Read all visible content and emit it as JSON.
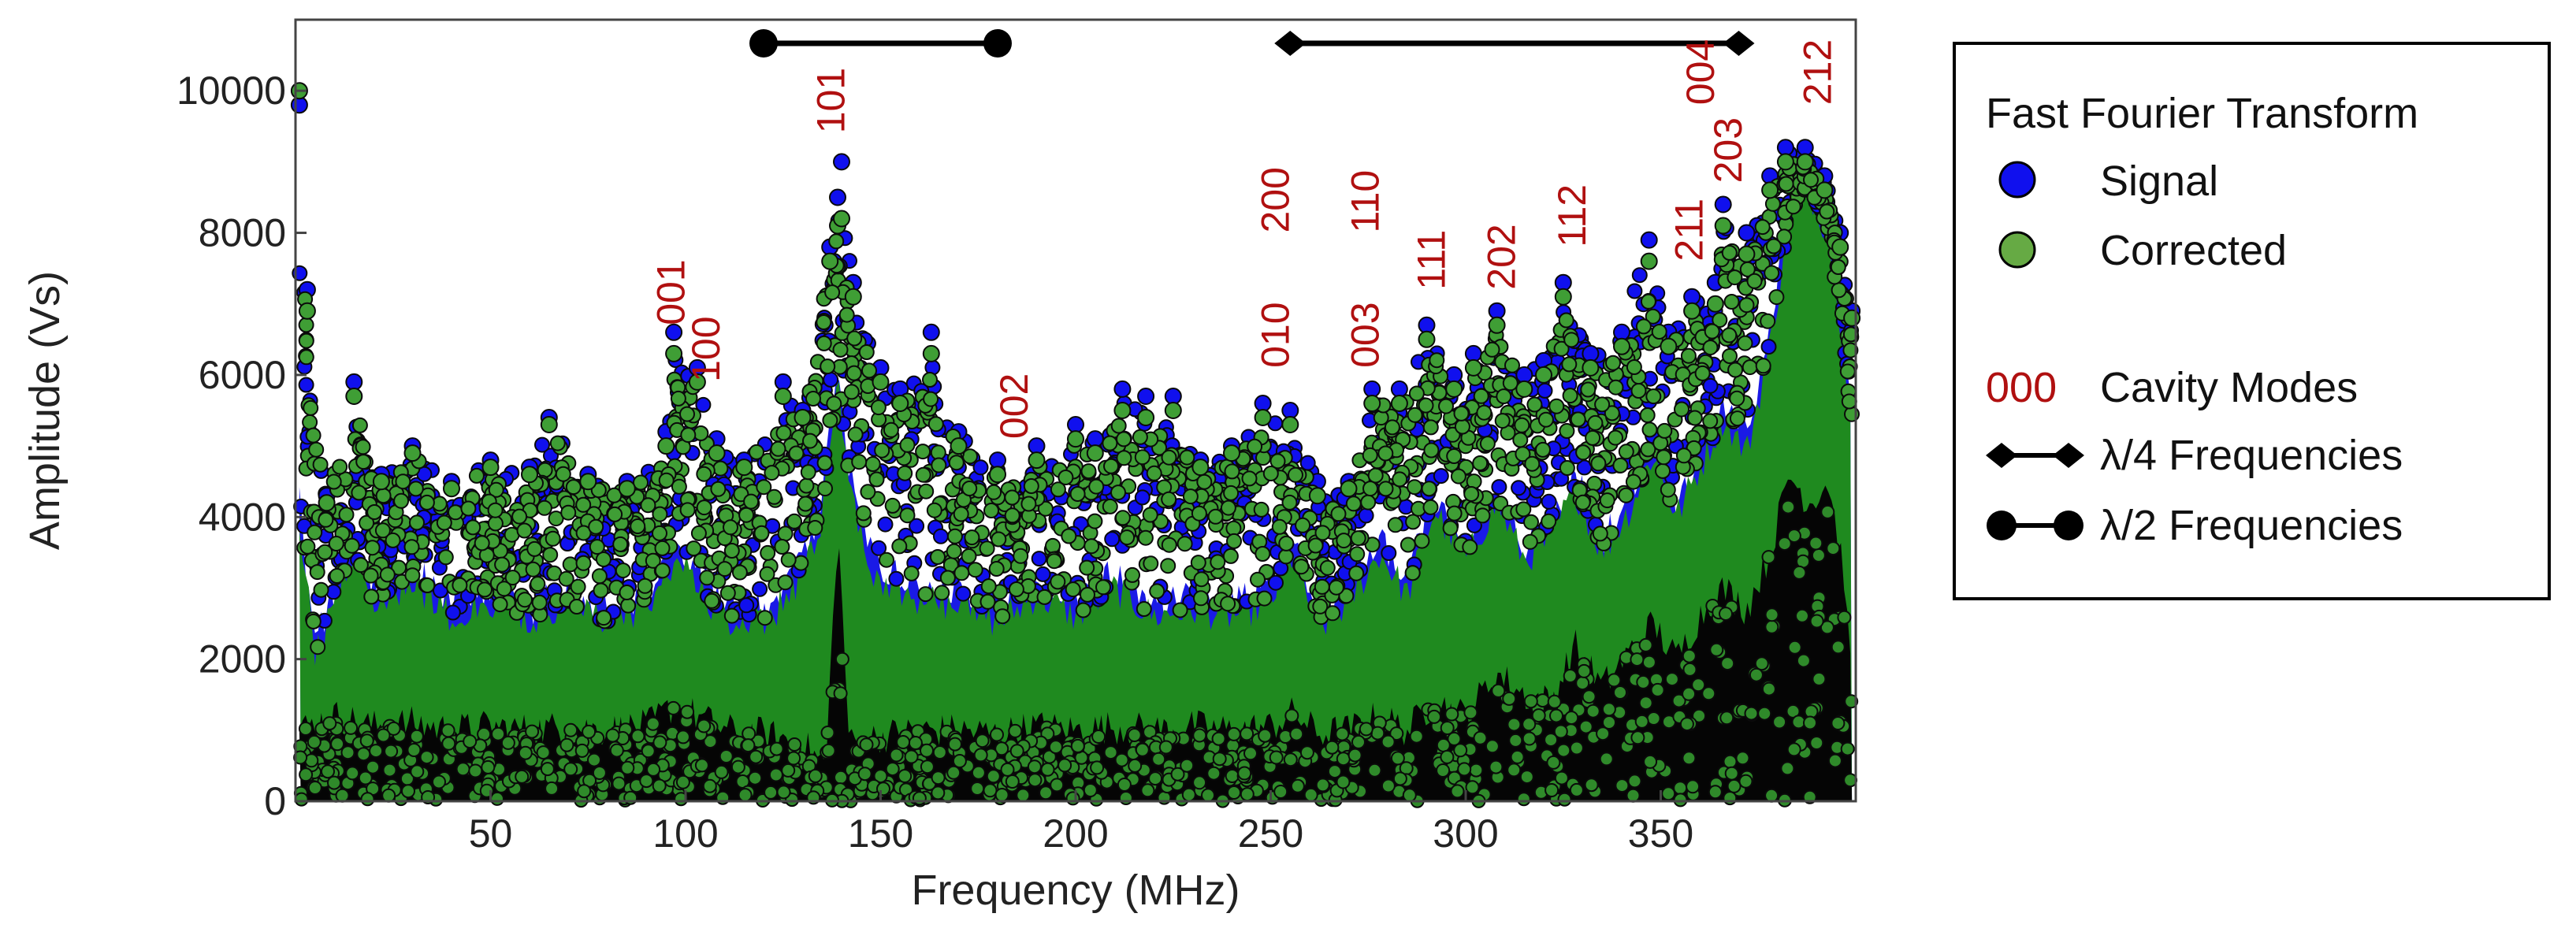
{
  "chart_data": {
    "type": "scatter",
    "title": "",
    "xlabel": "Frequency (MHz)",
    "ylabel": "Amplitude (Vs)",
    "xlim": [
      0,
      400
    ],
    "ylim": [
      0,
      11000
    ],
    "xticks": [
      50,
      100,
      150,
      200,
      250,
      300,
      350
    ],
    "yticks": [
      0,
      2000,
      4000,
      6000,
      8000,
      10000
    ],
    "grid": false,
    "legend": {
      "title": "Fast Fourier Transform",
      "placement": "right",
      "items": [
        {
          "label": "Signal",
          "color": "#1010ee",
          "marker": "circle"
        },
        {
          "label": "Corrected",
          "color": "#3a9a2a",
          "marker": "circle"
        },
        {
          "code": "000",
          "label": "Cavity Modes",
          "color": "#b01010",
          "marker": "text"
        },
        {
          "label": "λ/4 Frequencies",
          "color": "#000000",
          "marker": "diamond-line"
        },
        {
          "label": "λ/2 Frequencies",
          "color": "#000000",
          "marker": "circle-line"
        }
      ]
    },
    "series": [
      {
        "name": "Signal",
        "color": "#1010ee",
        "points": [
          [
            1,
            9800
          ],
          [
            3,
            7200
          ],
          [
            8,
            4300
          ],
          [
            15,
            5900
          ],
          [
            22,
            4600
          ],
          [
            30,
            5000
          ],
          [
            40,
            4500
          ],
          [
            50,
            4800
          ],
          [
            60,
            4700
          ],
          [
            65,
            5400
          ],
          [
            75,
            4600
          ],
          [
            85,
            4500
          ],
          [
            95,
            5200
          ],
          [
            97,
            6600
          ],
          [
            103,
            6100
          ],
          [
            108,
            5100
          ],
          [
            115,
            4800
          ],
          [
            125,
            5900
          ],
          [
            130,
            5500
          ],
          [
            137,
            7800
          ],
          [
            139,
            8500
          ],
          [
            140,
            9000
          ],
          [
            143,
            7300
          ],
          [
            150,
            6100
          ],
          [
            155,
            5800
          ],
          [
            163,
            6600
          ],
          [
            170,
            5200
          ],
          [
            180,
            4800
          ],
          [
            190,
            5000
          ],
          [
            200,
            5300
          ],
          [
            205,
            5100
          ],
          [
            212,
            5800
          ],
          [
            218,
            5700
          ],
          [
            225,
            5700
          ],
          [
            232,
            4800
          ],
          [
            240,
            5000
          ],
          [
            248,
            5600
          ],
          [
            255,
            5500
          ],
          [
            262,
            4500
          ],
          [
            270,
            4500
          ],
          [
            276,
            5800
          ],
          [
            283,
            5800
          ],
          [
            290,
            6700
          ],
          [
            297,
            6000
          ],
          [
            302,
            6300
          ],
          [
            308,
            6900
          ],
          [
            315,
            6000
          ],
          [
            320,
            6200
          ],
          [
            325,
            7300
          ],
          [
            332,
            6300
          ],
          [
            340,
            6600
          ],
          [
            347,
            7900
          ],
          [
            352,
            6600
          ],
          [
            358,
            7100
          ],
          [
            364,
            7300
          ],
          [
            366,
            8400
          ],
          [
            372,
            8000
          ],
          [
            378,
            8800
          ],
          [
            382,
            9200
          ],
          [
            387,
            9200
          ],
          [
            392,
            8800
          ],
          [
            396,
            8000
          ],
          [
            399,
            6900
          ]
        ]
      },
      {
        "name": "Corrected",
        "color": "#3a9a2a",
        "points": [
          [
            1,
            10000
          ],
          [
            3,
            6900
          ],
          [
            8,
            4200
          ],
          [
            15,
            5700
          ],
          [
            22,
            4500
          ],
          [
            30,
            4900
          ],
          [
            40,
            4400
          ],
          [
            50,
            4700
          ],
          [
            60,
            4600
          ],
          [
            65,
            5300
          ],
          [
            75,
            4500
          ],
          [
            85,
            4400
          ],
          [
            95,
            5000
          ],
          [
            97,
            6300
          ],
          [
            103,
            5900
          ],
          [
            108,
            4900
          ],
          [
            115,
            4700
          ],
          [
            125,
            5700
          ],
          [
            130,
            5400
          ],
          [
            137,
            7600
          ],
          [
            139,
            8100
          ],
          [
            140,
            8200
          ],
          [
            143,
            7100
          ],
          [
            150,
            5900
          ],
          [
            155,
            5600
          ],
          [
            163,
            6300
          ],
          [
            170,
            5000
          ],
          [
            180,
            4600
          ],
          [
            190,
            4800
          ],
          [
            200,
            5100
          ],
          [
            205,
            4900
          ],
          [
            212,
            5500
          ],
          [
            218,
            5400
          ],
          [
            225,
            5500
          ],
          [
            232,
            4700
          ],
          [
            240,
            4900
          ],
          [
            248,
            5400
          ],
          [
            255,
            5300
          ],
          [
            262,
            4300
          ],
          [
            270,
            4400
          ],
          [
            276,
            5600
          ],
          [
            283,
            5600
          ],
          [
            290,
            6500
          ],
          [
            297,
            5800
          ],
          [
            302,
            6100
          ],
          [
            308,
            6700
          ],
          [
            315,
            5800
          ],
          [
            320,
            6000
          ],
          [
            325,
            7100
          ],
          [
            332,
            6100
          ],
          [
            340,
            6400
          ],
          [
            347,
            7600
          ],
          [
            352,
            6400
          ],
          [
            358,
            6900
          ],
          [
            364,
            7000
          ],
          [
            366,
            8100
          ],
          [
            372,
            7700
          ],
          [
            378,
            8600
          ],
          [
            382,
            9000
          ],
          [
            387,
            9000
          ],
          [
            392,
            8600
          ],
          [
            396,
            7800
          ],
          [
            399,
            6800
          ]
        ]
      }
    ],
    "signal_band_top": [
      [
        1,
        4200
      ],
      [
        5,
        2200
      ],
      [
        10,
        3000
      ],
      [
        15,
        3700
      ],
      [
        20,
        3000
      ],
      [
        30,
        3300
      ],
      [
        40,
        2800
      ],
      [
        50,
        3000
      ],
      [
        60,
        2700
      ],
      [
        70,
        3000
      ],
      [
        80,
        2700
      ],
      [
        90,
        2900
      ],
      [
        97,
        3600
      ],
      [
        103,
        3300
      ],
      [
        110,
        2700
      ],
      [
        120,
        2700
      ],
      [
        128,
        3200
      ],
      [
        135,
        4200
      ],
      [
        139,
        6300
      ],
      [
        142,
        4700
      ],
      [
        148,
        3400
      ],
      [
        160,
        3000
      ],
      [
        170,
        3000
      ],
      [
        180,
        2700
      ],
      [
        190,
        3100
      ],
      [
        200,
        2800
      ],
      [
        210,
        3200
      ],
      [
        220,
        2800
      ],
      [
        230,
        2900
      ],
      [
        240,
        2800
      ],
      [
        250,
        3000
      ],
      [
        256,
        3700
      ],
      [
        262,
        2600
      ],
      [
        270,
        3000
      ],
      [
        278,
        3700
      ],
      [
        285,
        3100
      ],
      [
        292,
        4300
      ],
      [
        300,
        3600
      ],
      [
        308,
        4400
      ],
      [
        315,
        3600
      ],
      [
        322,
        3900
      ],
      [
        328,
        4600
      ],
      [
        335,
        3700
      ],
      [
        342,
        4300
      ],
      [
        348,
        5100
      ],
      [
        354,
        4200
      ],
      [
        360,
        4900
      ],
      [
        366,
        5600
      ],
      [
        372,
        5100
      ],
      [
        378,
        6600
      ],
      [
        383,
        8500
      ],
      [
        388,
        9000
      ],
      [
        393,
        8300
      ],
      [
        397,
        6600
      ],
      [
        399,
        5400
      ]
    ],
    "green_band_top": [
      [
        1,
        4000
      ],
      [
        5,
        2000
      ],
      [
        10,
        2800
      ],
      [
        15,
        3500
      ],
      [
        20,
        2800
      ],
      [
        30,
        3100
      ],
      [
        40,
        2600
      ],
      [
        50,
        2800
      ],
      [
        60,
        2500
      ],
      [
        70,
        2800
      ],
      [
        80,
        2500
      ],
      [
        90,
        2700
      ],
      [
        97,
        3400
      ],
      [
        103,
        3100
      ],
      [
        110,
        2500
      ],
      [
        120,
        2500
      ],
      [
        128,
        3000
      ],
      [
        135,
        4000
      ],
      [
        139,
        5900
      ],
      [
        142,
        4500
      ],
      [
        148,
        3200
      ],
      [
        160,
        2800
      ],
      [
        170,
        2800
      ],
      [
        180,
        2500
      ],
      [
        190,
        2900
      ],
      [
        200,
        2600
      ],
      [
        210,
        3000
      ],
      [
        220,
        2600
      ],
      [
        230,
        2700
      ],
      [
        240,
        2600
      ],
      [
        250,
        2800
      ],
      [
        256,
        3500
      ],
      [
        262,
        2400
      ],
      [
        270,
        2800
      ],
      [
        278,
        3500
      ],
      [
        285,
        2900
      ],
      [
        292,
        4100
      ],
      [
        300,
        3400
      ],
      [
        308,
        4200
      ],
      [
        315,
        3400
      ],
      [
        322,
        3700
      ],
      [
        328,
        4400
      ],
      [
        335,
        3500
      ],
      [
        342,
        4100
      ],
      [
        348,
        4900
      ],
      [
        354,
        4000
      ],
      [
        360,
        4700
      ],
      [
        366,
        5400
      ],
      [
        372,
        4900
      ],
      [
        378,
        6400
      ],
      [
        383,
        8200
      ],
      [
        388,
        8600
      ],
      [
        393,
        8000
      ],
      [
        397,
        6400
      ],
      [
        399,
        5200
      ]
    ],
    "green_band_bottom": [
      [
        1,
        900
      ],
      [
        10,
        1100
      ],
      [
        20,
        1000
      ],
      [
        30,
        1050
      ],
      [
        40,
        950
      ],
      [
        50,
        1000
      ],
      [
        60,
        950
      ],
      [
        70,
        1000
      ],
      [
        80,
        950
      ],
      [
        90,
        1000
      ],
      [
        97,
        1250
      ],
      [
        103,
        1100
      ],
      [
        110,
        950
      ],
      [
        120,
        900
      ],
      [
        130,
        700
      ],
      [
        136,
        300
      ],
      [
        139,
        500
      ],
      [
        142,
        300
      ],
      [
        148,
        800
      ],
      [
        160,
        950
      ],
      [
        170,
        950
      ],
      [
        180,
        900
      ],
      [
        190,
        1000
      ],
      [
        200,
        950
      ],
      [
        210,
        1000
      ],
      [
        220,
        950
      ],
      [
        230,
        1000
      ],
      [
        240,
        950
      ],
      [
        250,
        1000
      ],
      [
        256,
        1150
      ],
      [
        262,
        900
      ],
      [
        270,
        900
      ],
      [
        278,
        1000
      ],
      [
        285,
        900
      ],
      [
        292,
        1100
      ],
      [
        300,
        1000
      ],
      [
        308,
        1200
      ],
      [
        315,
        1000
      ],
      [
        322,
        700
      ],
      [
        328,
        900
      ],
      [
        335,
        600
      ],
      [
        342,
        800
      ],
      [
        348,
        900
      ],
      [
        354,
        700
      ],
      [
        360,
        800
      ],
      [
        366,
        900
      ],
      [
        372,
        1000
      ],
      [
        378,
        1800
      ],
      [
        383,
        2500
      ],
      [
        388,
        2200
      ],
      [
        393,
        2600
      ],
      [
        397,
        1800
      ],
      [
        399,
        900
      ]
    ],
    "black_band_top": [
      [
        1,
        1000
      ],
      [
        10,
        1200
      ],
      [
        20,
        1050
      ],
      [
        30,
        1100
      ],
      [
        40,
        1000
      ],
      [
        50,
        1050
      ],
      [
        60,
        1000
      ],
      [
        70,
        1050
      ],
      [
        80,
        1000
      ],
      [
        90,
        1050
      ],
      [
        97,
        1350
      ],
      [
        103,
        1200
      ],
      [
        110,
        1000
      ],
      [
        120,
        950
      ],
      [
        130,
        800
      ],
      [
        136,
        500
      ],
      [
        139,
        3900
      ],
      [
        142,
        800
      ],
      [
        148,
        900
      ],
      [
        160,
        1000
      ],
      [
        170,
        1000
      ],
      [
        180,
        950
      ],
      [
        190,
        1050
      ],
      [
        200,
        1000
      ],
      [
        210,
        1050
      ],
      [
        220,
        1000
      ],
      [
        230,
        1050
      ],
      [
        240,
        1000
      ],
      [
        250,
        1050
      ],
      [
        256,
        1250
      ],
      [
        262,
        950
      ],
      [
        270,
        1000
      ],
      [
        278,
        1200
      ],
      [
        285,
        1000
      ],
      [
        292,
        1400
      ],
      [
        300,
        1200
      ],
      [
        308,
        1800
      ],
      [
        315,
        1500
      ],
      [
        322,
        1400
      ],
      [
        328,
        2200
      ],
      [
        335,
        1600
      ],
      [
        342,
        2100
      ],
      [
        348,
        2500
      ],
      [
        354,
        2000
      ],
      [
        360,
        2600
      ],
      [
        366,
        3000
      ],
      [
        372,
        2700
      ],
      [
        378,
        3500
      ],
      [
        383,
        4600
      ],
      [
        388,
        4200
      ],
      [
        393,
        4500
      ],
      [
        397,
        3200
      ],
      [
        399,
        1500
      ]
    ],
    "mode_labels": [
      {
        "label": "001",
        "x": 97,
        "y": 6700
      },
      {
        "label": "100",
        "x": 106,
        "y": 5900
      },
      {
        "label": "101",
        "x": 138,
        "y": 9400
      },
      {
        "label": "002",
        "x": 185,
        "y": 5100
      },
      {
        "label": "010",
        "x": 252,
        "y": 6100
      },
      {
        "label": "200",
        "x": 252,
        "y": 8000
      },
      {
        "label": "003",
        "x": 275,
        "y": 6100
      },
      {
        "label": "110",
        "x": 275,
        "y": 8000
      },
      {
        "label": "111",
        "x": 292,
        "y": 7200
      },
      {
        "label": "202",
        "x": 310,
        "y": 7200
      },
      {
        "label": "112",
        "x": 328,
        "y": 7800
      },
      {
        "label": "211",
        "x": 358,
        "y": 7600
      },
      {
        "label": "203",
        "x": 368,
        "y": 8700
      },
      {
        "label": "004",
        "x": 361,
        "y": 9800
      },
      {
        "label": "212",
        "x": 391,
        "y": 9800
      }
    ],
    "frequency_ranges": [
      {
        "name": "λ/2 Frequencies",
        "x1": 120,
        "x2": 180,
        "marker": "circle"
      },
      {
        "name": "λ/4 Frequencies",
        "x1": 255,
        "x2": 370,
        "marker": "diamond"
      }
    ]
  }
}
